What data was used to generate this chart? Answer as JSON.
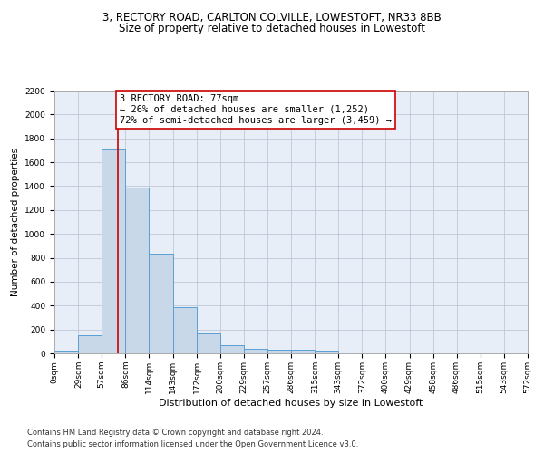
{
  "title1": "3, RECTORY ROAD, CARLTON COLVILLE, LOWESTOFT, NR33 8BB",
  "title2": "Size of property relative to detached houses in Lowestoft",
  "xlabel": "Distribution of detached houses by size in Lowestoft",
  "ylabel": "Number of detached properties",
  "bar_values": [
    20,
    155,
    1710,
    1390,
    835,
    385,
    165,
    65,
    35,
    30,
    28,
    20,
    0,
    0,
    0,
    0,
    0,
    0,
    0,
    0
  ],
  "bar_edges": [
    0,
    29,
    57,
    86,
    114,
    143,
    172,
    200,
    229,
    257,
    286,
    315,
    343,
    372,
    400,
    429,
    458,
    486,
    515,
    543,
    572
  ],
  "tick_labels": [
    "0sqm",
    "29sqm",
    "57sqm",
    "86sqm",
    "114sqm",
    "143sqm",
    "172sqm",
    "200sqm",
    "229sqm",
    "257sqm",
    "286sqm",
    "315sqm",
    "343sqm",
    "372sqm",
    "400sqm",
    "429sqm",
    "458sqm",
    "486sqm",
    "515sqm",
    "543sqm",
    "572sqm"
  ],
  "bar_color": "#c8d8e8",
  "bar_edge_color": "#5a9fd4",
  "vline_x": 77,
  "vline_color": "#cc0000",
  "annotation_text": "3 RECTORY ROAD: 77sqm\n← 26% of detached houses are smaller (1,252)\n72% of semi-detached houses are larger (3,459) →",
  "annotation_box_color": "#ffffff",
  "annotation_border_color": "#cc0000",
  "ylim": [
    0,
    2200
  ],
  "yticks": [
    0,
    200,
    400,
    600,
    800,
    1000,
    1200,
    1400,
    1600,
    1800,
    2000,
    2200
  ],
  "grid_color": "#c0c8d8",
  "bg_color": "#e8eef8",
  "footer1": "Contains HM Land Registry data © Crown copyright and database right 2024.",
  "footer2": "Contains public sector information licensed under the Open Government Licence v3.0.",
  "title1_fontsize": 8.5,
  "title2_fontsize": 8.5,
  "xlabel_fontsize": 8,
  "ylabel_fontsize": 7.5,
  "tick_fontsize": 6.5,
  "annotation_fontsize": 7.5,
  "footer_fontsize": 6
}
